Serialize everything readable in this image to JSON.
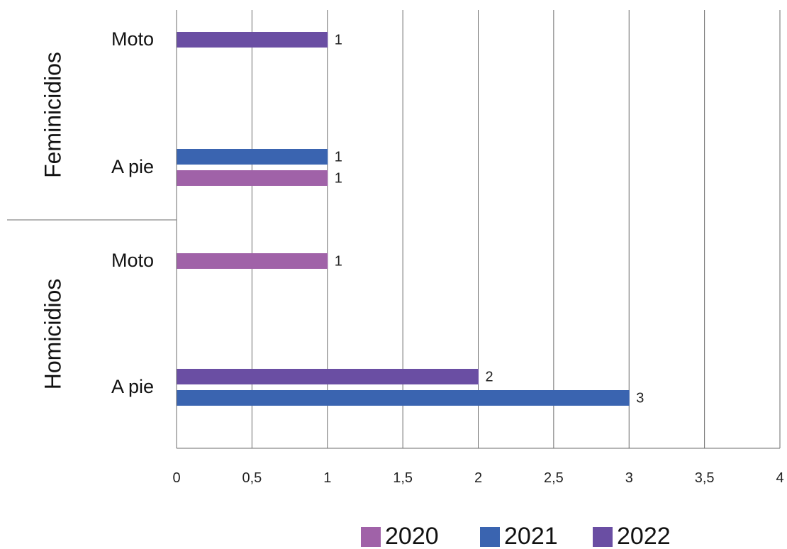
{
  "chart_data": {
    "type": "bar",
    "orientation": "horizontal",
    "xlim": [
      0,
      4
    ],
    "x_ticks": [
      "0",
      "0,5",
      "1",
      "1,5",
      "2",
      "2,5",
      "3",
      "3,5",
      "4"
    ],
    "grid": "vertical",
    "legend_position": "bottom-right",
    "groups": [
      {
        "name": "Feminicidios",
        "categories": [
          {
            "name": "Moto",
            "bars": [
              {
                "series": "2022",
                "value": 1,
                "label": "1"
              }
            ]
          },
          {
            "name": "A pie",
            "bars": [
              {
                "series": "2021",
                "value": 1,
                "label": "1"
              },
              {
                "series": "2020",
                "value": 1,
                "label": "1"
              }
            ]
          }
        ]
      },
      {
        "name": "Homicidios",
        "categories": [
          {
            "name": "Moto",
            "bars": [
              {
                "series": "2020",
                "value": 1,
                "label": "1"
              }
            ]
          },
          {
            "name": "A pie",
            "bars": [
              {
                "series": "2022",
                "value": 2,
                "label": "2"
              },
              {
                "series": "2021",
                "value": 3,
                "label": "3"
              }
            ]
          }
        ]
      }
    ],
    "series": [
      {
        "name": "2020",
        "color": "#a062a8"
      },
      {
        "name": "2021",
        "color": "#3a64b0"
      },
      {
        "name": "2022",
        "color": "#6a4ea3"
      }
    ]
  }
}
